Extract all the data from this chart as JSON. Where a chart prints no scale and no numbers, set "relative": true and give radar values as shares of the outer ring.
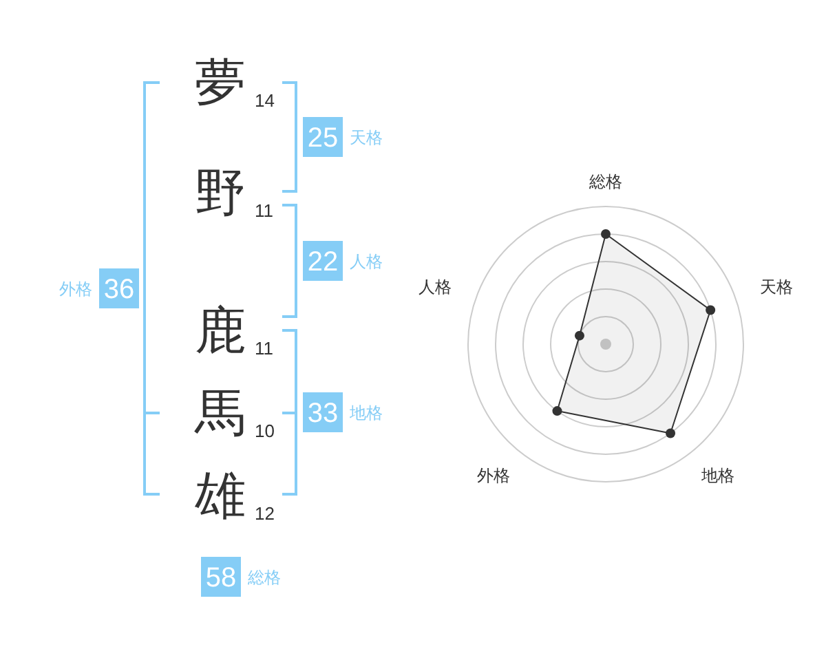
{
  "chart_data": [
    {
      "type": "other",
      "categories": [
        "夢",
        "野",
        "鹿",
        "馬",
        "雄"
      ],
      "values": [
        14,
        11,
        11,
        10,
        12
      ],
      "data_labels": true
    },
    {
      "type": "other",
      "categories": [
        "天格",
        "人格",
        "外格",
        "地格",
        "総格"
      ],
      "values": [
        25,
        22,
        36,
        33,
        58
      ],
      "data_labels": true,
      "color": "#85cdf6"
    },
    {
      "type": "radar",
      "categories": [
        "総格",
        "天格",
        "地格",
        "外格",
        "人格"
      ],
      "relative": true,
      "grid": true,
      "marker": "circle",
      "series": [
        {
          "color": "#333333",
          "values": [
            0.8,
            0.8,
            0.8,
            0.6,
            0.2
          ]
        }
      ]
    }
  ]
}
